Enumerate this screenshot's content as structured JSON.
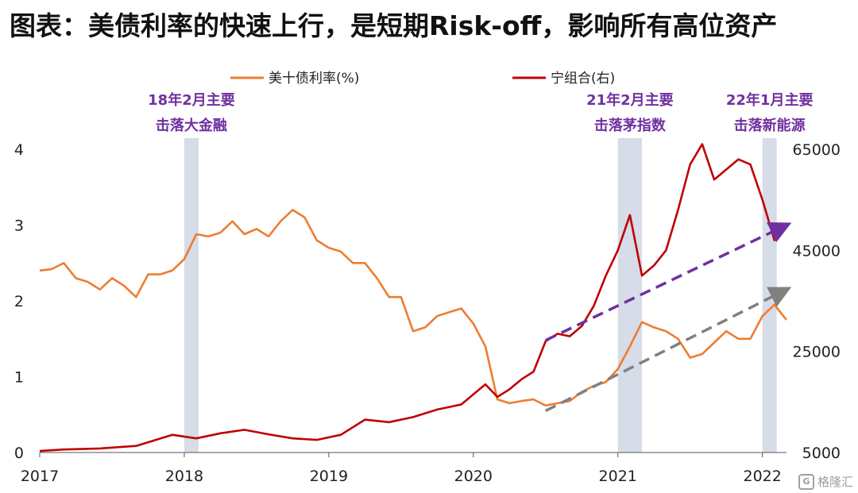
{
  "title": "图表：美债利率的快速上行，是短期Risk-off，影响所有高位资产",
  "watermark": {
    "text": "格隆汇",
    "icon": "logo-icon"
  },
  "chart_data": {
    "type": "line",
    "x_ticks": [
      "2017",
      "2018",
      "2019",
      "2020",
      "2021",
      "2022"
    ],
    "y_left_ticks": [
      "0",
      "1",
      "2",
      "3",
      "4"
    ],
    "y_right_ticks": [
      "5000",
      "25000",
      "45000",
      "65000"
    ],
    "y_left_range": [
      0,
      4
    ],
    "y_right_range": [
      5000,
      65000
    ],
    "x_range": [
      "2017-01",
      "2022-03"
    ],
    "legend": [
      {
        "label": "美十债利率(%)",
        "color": "#ed7d31"
      },
      {
        "label": "宁组合(右)",
        "color": "#c00000"
      }
    ],
    "series": [
      {
        "name": "美十债利率(%)",
        "axis": "left",
        "color": "#ed7d31",
        "points": [
          [
            "2017-01",
            2.4
          ],
          [
            "2017-02",
            2.42
          ],
          [
            "2017-03",
            2.5
          ],
          [
            "2017-04",
            2.3
          ],
          [
            "2017-05",
            2.25
          ],
          [
            "2017-06",
            2.15
          ],
          [
            "2017-07",
            2.3
          ],
          [
            "2017-08",
            2.2
          ],
          [
            "2017-09",
            2.05
          ],
          [
            "2017-10",
            2.35
          ],
          [
            "2017-11",
            2.35
          ],
          [
            "2017-12",
            2.4
          ],
          [
            "2018-01",
            2.55
          ],
          [
            "2018-02",
            2.88
          ],
          [
            "2018-03",
            2.85
          ],
          [
            "2018-04",
            2.9
          ],
          [
            "2018-05",
            3.05
          ],
          [
            "2018-06",
            2.88
          ],
          [
            "2018-07",
            2.95
          ],
          [
            "2018-08",
            2.85
          ],
          [
            "2018-09",
            3.05
          ],
          [
            "2018-10",
            3.2
          ],
          [
            "2018-11",
            3.1
          ],
          [
            "2018-12",
            2.8
          ],
          [
            "2019-01",
            2.7
          ],
          [
            "2019-02",
            2.65
          ],
          [
            "2019-03",
            2.5
          ],
          [
            "2019-04",
            2.5
          ],
          [
            "2019-05",
            2.3
          ],
          [
            "2019-06",
            2.05
          ],
          [
            "2019-07",
            2.05
          ],
          [
            "2019-08",
            1.6
          ],
          [
            "2019-09",
            1.65
          ],
          [
            "2019-10",
            1.8
          ],
          [
            "2019-11",
            1.85
          ],
          [
            "2019-12",
            1.9
          ],
          [
            "2020-01",
            1.7
          ],
          [
            "2020-02",
            1.4
          ],
          [
            "2020-03",
            0.7
          ],
          [
            "2020-04",
            0.65
          ],
          [
            "2020-05",
            0.68
          ],
          [
            "2020-06",
            0.7
          ],
          [
            "2020-07",
            0.62
          ],
          [
            "2020-08",
            0.65
          ],
          [
            "2020-09",
            0.68
          ],
          [
            "2020-10",
            0.8
          ],
          [
            "2020-11",
            0.88
          ],
          [
            "2020-12",
            0.93
          ],
          [
            "2021-01",
            1.1
          ],
          [
            "2021-02",
            1.4
          ],
          [
            "2021-03",
            1.72
          ],
          [
            "2021-04",
            1.65
          ],
          [
            "2021-05",
            1.6
          ],
          [
            "2021-06",
            1.5
          ],
          [
            "2021-07",
            1.25
          ],
          [
            "2021-08",
            1.3
          ],
          [
            "2021-09",
            1.45
          ],
          [
            "2021-10",
            1.6
          ],
          [
            "2021-11",
            1.5
          ],
          [
            "2021-12",
            1.5
          ],
          [
            "2022-01",
            1.8
          ],
          [
            "2022-02",
            1.95
          ],
          [
            "2022-03",
            1.75
          ]
        ]
      },
      {
        "name": "宁组合(右)",
        "axis": "right",
        "color": "#c00000",
        "points": [
          [
            "2017-01",
            5300
          ],
          [
            "2017-03",
            5600
          ],
          [
            "2017-06",
            5800
          ],
          [
            "2017-09",
            6300
          ],
          [
            "2017-12",
            8500
          ],
          [
            "2018-02",
            7800
          ],
          [
            "2018-04",
            8800
          ],
          [
            "2018-06",
            9500
          ],
          [
            "2018-08",
            8600
          ],
          [
            "2018-10",
            7800
          ],
          [
            "2018-12",
            7500
          ],
          [
            "2019-02",
            8500
          ],
          [
            "2019-04",
            11500
          ],
          [
            "2019-06",
            11000
          ],
          [
            "2019-08",
            12000
          ],
          [
            "2019-10",
            13500
          ],
          [
            "2019-12",
            14500
          ],
          [
            "2020-01",
            16500
          ],
          [
            "2020-02",
            18500
          ],
          [
            "2020-03",
            16000
          ],
          [
            "2020-04",
            17500
          ],
          [
            "2020-05",
            19500
          ],
          [
            "2020-06",
            21000
          ],
          [
            "2020-07",
            27000
          ],
          [
            "2020-08",
            28500
          ],
          [
            "2020-09",
            28000
          ],
          [
            "2020-10",
            30000
          ],
          [
            "2020-11",
            34000
          ],
          [
            "2020-12",
            40000
          ],
          [
            "2021-01",
            45000
          ],
          [
            "2021-02",
            52000
          ],
          [
            "2021-03",
            40000
          ],
          [
            "2021-04",
            42000
          ],
          [
            "2021-05",
            45000
          ],
          [
            "2021-06",
            53000
          ],
          [
            "2021-07",
            62000
          ],
          [
            "2021-08",
            66000
          ],
          [
            "2021-09",
            59000
          ],
          [
            "2021-10",
            61000
          ],
          [
            "2021-11",
            63000
          ],
          [
            "2021-12",
            62000
          ],
          [
            "2022-01",
            55000
          ],
          [
            "2022-02",
            47000
          ],
          [
            "2022-03",
            50000
          ]
        ]
      }
    ],
    "shaded_periods": [
      {
        "start": "2018-01",
        "end": "2018-02",
        "label_lines": [
          "18年2月主要",
          "击落大金融"
        ]
      },
      {
        "start": "2021-01",
        "end": "2021-03",
        "label_lines": [
          "21年2月主要",
          "击落茅指数"
        ]
      },
      {
        "start": "2022-01",
        "end": "2022-02",
        "label_lines": [
          "22年1月主要",
          "击落新能源"
        ]
      }
    ],
    "trend_arrows": [
      {
        "color": "#7030a0",
        "axis": "left",
        "from": [
          "2020-07",
          1.48
        ],
        "to": [
          "2022-03",
          3.0
        ]
      },
      {
        "color": "#808080",
        "axis": "left",
        "from": [
          "2020-07",
          0.55
        ],
        "to": [
          "2022-03",
          2.15
        ]
      }
    ]
  }
}
